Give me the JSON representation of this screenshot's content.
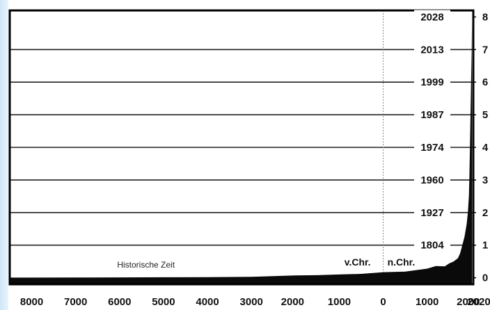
{
  "chart_data": {
    "type": "area",
    "title": "",
    "xlabel": "",
    "ylabel": "",
    "x_ticks": [
      "8000",
      "7000",
      "6000",
      "5000",
      "4000",
      "3000",
      "2000",
      "1000",
      "0",
      "1000",
      "2000",
      "2020"
    ],
    "y_ticks": [
      "0",
      "1",
      "2",
      "3",
      "4",
      "5",
      "6",
      "7",
      "8"
    ],
    "xlim": [
      -8500,
      2050
    ],
    "ylim": [
      -0.2,
      8.2
    ],
    "grid": "horizontal",
    "milestones": [
      {
        "value": 1,
        "year": "1804"
      },
      {
        "value": 2,
        "year": "1927"
      },
      {
        "value": 3,
        "year": "1960"
      },
      {
        "value": 4,
        "year": "1974"
      },
      {
        "value": 5,
        "year": "1987"
      },
      {
        "value": 6,
        "year": "1999"
      },
      {
        "value": 7,
        "year": "2013"
      },
      {
        "value": 8,
        "year": "2028"
      }
    ],
    "annotations": {
      "historic": "Historische Zeit",
      "bc": "v.Chr.",
      "ad": "n.Chr."
    },
    "series": [
      {
        "x": [
          -8500,
          -8000,
          -7000,
          -6000,
          -5000,
          -4000,
          -3000,
          -2500,
          -2000,
          -1500,
          -1000,
          -500,
          0,
          500,
          1000,
          1200,
          1400,
          1500,
          1600,
          1700,
          1750,
          1800,
          1850,
          1900,
          1927,
          1950,
          1960,
          1974,
          1987,
          1999,
          2013,
          2020
        ],
        "values": [
          0.005,
          0.005,
          0.007,
          0.01,
          0.015,
          0.02,
          0.03,
          0.05,
          0.07,
          0.08,
          0.1,
          0.12,
          0.17,
          0.19,
          0.28,
          0.36,
          0.35,
          0.44,
          0.5,
          0.6,
          0.75,
          1.0,
          1.26,
          1.65,
          2.0,
          2.5,
          3.0,
          4.0,
          5.0,
          6.0,
          7.0,
          7.8
        ]
      }
    ],
    "colors": {
      "fill": "#0a0a0a",
      "grid": "#222222",
      "frame": "#000000",
      "zero_line": "#888888"
    }
  }
}
